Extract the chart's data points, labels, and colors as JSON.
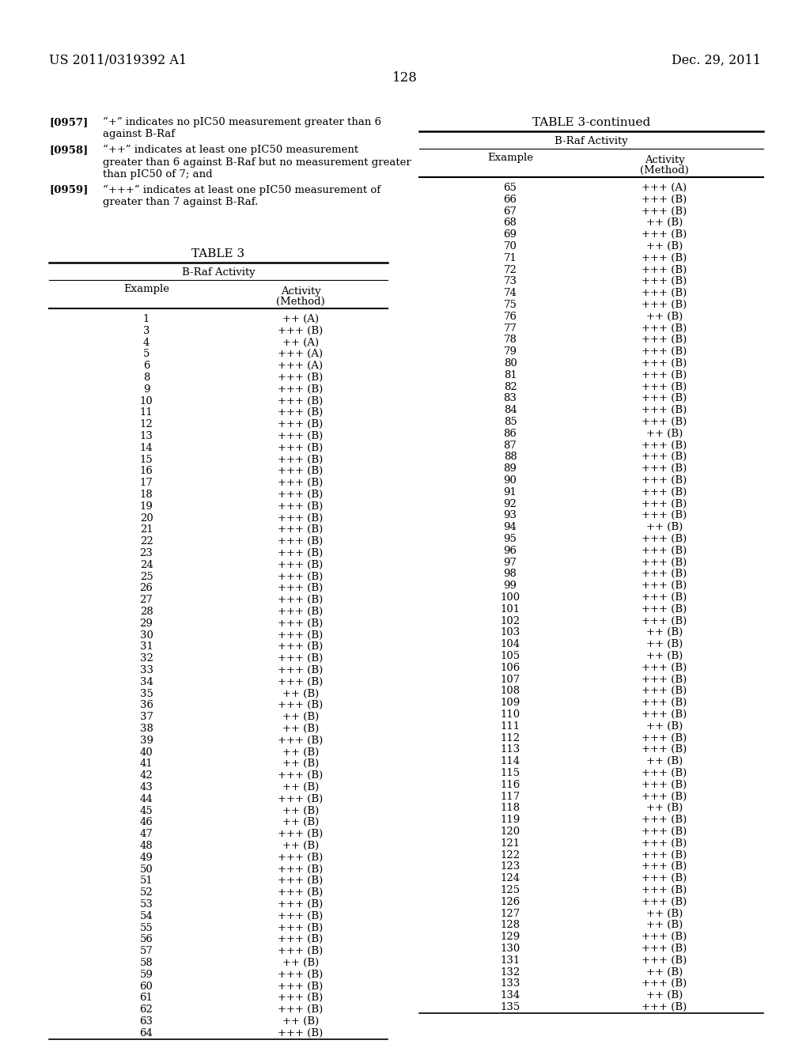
{
  "page_number": "128",
  "patent_number": "US 2011/0319392 A1",
  "patent_date": "Dec. 29, 2011",
  "background_color": "#ffffff",
  "text_color": "#000000",
  "left_table_data": [
    [
      1,
      "++ (A)"
    ],
    [
      3,
      "+++ (B)"
    ],
    [
      4,
      "++ (A)"
    ],
    [
      5,
      "+++ (A)"
    ],
    [
      6,
      "+++ (A)"
    ],
    [
      8,
      "+++ (B)"
    ],
    [
      9,
      "+++ (B)"
    ],
    [
      10,
      "+++ (B)"
    ],
    [
      11,
      "+++ (B)"
    ],
    [
      12,
      "+++ (B)"
    ],
    [
      13,
      "+++ (B)"
    ],
    [
      14,
      "+++ (B)"
    ],
    [
      15,
      "+++ (B)"
    ],
    [
      16,
      "+++ (B)"
    ],
    [
      17,
      "+++ (B)"
    ],
    [
      18,
      "+++ (B)"
    ],
    [
      19,
      "+++ (B)"
    ],
    [
      20,
      "+++ (B)"
    ],
    [
      21,
      "+++ (B)"
    ],
    [
      22,
      "+++ (B)"
    ],
    [
      23,
      "+++ (B)"
    ],
    [
      24,
      "+++ (B)"
    ],
    [
      25,
      "+++ (B)"
    ],
    [
      26,
      "+++ (B)"
    ],
    [
      27,
      "+++ (B)"
    ],
    [
      28,
      "+++ (B)"
    ],
    [
      29,
      "+++ (B)"
    ],
    [
      30,
      "+++ (B)"
    ],
    [
      31,
      "+++ (B)"
    ],
    [
      32,
      "+++ (B)"
    ],
    [
      33,
      "+++ (B)"
    ],
    [
      34,
      "+++ (B)"
    ],
    [
      35,
      "++ (B)"
    ],
    [
      36,
      "+++ (B)"
    ],
    [
      37,
      "++ (B)"
    ],
    [
      38,
      "++ (B)"
    ],
    [
      39,
      "+++ (B)"
    ],
    [
      40,
      "++ (B)"
    ],
    [
      41,
      "++ (B)"
    ],
    [
      42,
      "+++ (B)"
    ],
    [
      43,
      "++ (B)"
    ],
    [
      44,
      "+++ (B)"
    ],
    [
      45,
      "++ (B)"
    ],
    [
      46,
      "++ (B)"
    ],
    [
      47,
      "+++ (B)"
    ],
    [
      48,
      "++ (B)"
    ],
    [
      49,
      "+++ (B)"
    ],
    [
      50,
      "+++ (B)"
    ],
    [
      51,
      "+++ (B)"
    ],
    [
      52,
      "+++ (B)"
    ],
    [
      53,
      "+++ (B)"
    ],
    [
      54,
      "+++ (B)"
    ],
    [
      55,
      "+++ (B)"
    ],
    [
      56,
      "+++ (B)"
    ],
    [
      57,
      "+++ (B)"
    ],
    [
      58,
      "++ (B)"
    ],
    [
      59,
      "+++ (B)"
    ],
    [
      60,
      "+++ (B)"
    ],
    [
      61,
      "+++ (B)"
    ],
    [
      62,
      "+++ (B)"
    ],
    [
      63,
      "++ (B)"
    ],
    [
      64,
      "+++ (B)"
    ]
  ],
  "right_table_data": [
    [
      65,
      "+++ (A)"
    ],
    [
      66,
      "+++ (B)"
    ],
    [
      67,
      "+++ (B)"
    ],
    [
      68,
      "++ (B)"
    ],
    [
      69,
      "+++ (B)"
    ],
    [
      70,
      "++ (B)"
    ],
    [
      71,
      "+++ (B)"
    ],
    [
      72,
      "+++ (B)"
    ],
    [
      73,
      "+++ (B)"
    ],
    [
      74,
      "+++ (B)"
    ],
    [
      75,
      "+++ (B)"
    ],
    [
      76,
      "++ (B)"
    ],
    [
      77,
      "+++ (B)"
    ],
    [
      78,
      "+++ (B)"
    ],
    [
      79,
      "+++ (B)"
    ],
    [
      80,
      "+++ (B)"
    ],
    [
      81,
      "+++ (B)"
    ],
    [
      82,
      "+++ (B)"
    ],
    [
      83,
      "+++ (B)"
    ],
    [
      84,
      "+++ (B)"
    ],
    [
      85,
      "+++ (B)"
    ],
    [
      86,
      "++ (B)"
    ],
    [
      87,
      "+++ (B)"
    ],
    [
      88,
      "+++ (B)"
    ],
    [
      89,
      "+++ (B)"
    ],
    [
      90,
      "+++ (B)"
    ],
    [
      91,
      "+++ (B)"
    ],
    [
      92,
      "+++ (B)"
    ],
    [
      93,
      "+++ (B)"
    ],
    [
      94,
      "++ (B)"
    ],
    [
      95,
      "+++ (B)"
    ],
    [
      96,
      "+++ (B)"
    ],
    [
      97,
      "+++ (B)"
    ],
    [
      98,
      "+++ (B)"
    ],
    [
      99,
      "+++ (B)"
    ],
    [
      100,
      "+++ (B)"
    ],
    [
      101,
      "+++ (B)"
    ],
    [
      102,
      "+++ (B)"
    ],
    [
      103,
      "++ (B)"
    ],
    [
      104,
      "++ (B)"
    ],
    [
      105,
      "++ (B)"
    ],
    [
      106,
      "+++ (B)"
    ],
    [
      107,
      "+++ (B)"
    ],
    [
      108,
      "+++ (B)"
    ],
    [
      109,
      "+++ (B)"
    ],
    [
      110,
      "+++ (B)"
    ],
    [
      111,
      "++ (B)"
    ],
    [
      112,
      "+++ (B)"
    ],
    [
      113,
      "+++ (B)"
    ],
    [
      114,
      "++ (B)"
    ],
    [
      115,
      "+++ (B)"
    ],
    [
      116,
      "+++ (B)"
    ],
    [
      117,
      "+++ (B)"
    ],
    [
      118,
      "++ (B)"
    ],
    [
      119,
      "+++ (B)"
    ],
    [
      120,
      "+++ (B)"
    ],
    [
      121,
      "+++ (B)"
    ],
    [
      122,
      "+++ (B)"
    ],
    [
      123,
      "+++ (B)"
    ],
    [
      124,
      "+++ (B)"
    ],
    [
      125,
      "+++ (B)"
    ],
    [
      126,
      "+++ (B)"
    ],
    [
      127,
      "++ (B)"
    ],
    [
      128,
      "++ (B)"
    ],
    [
      129,
      "+++ (B)"
    ],
    [
      130,
      "+++ (B)"
    ],
    [
      131,
      "+++ (B)"
    ],
    [
      132,
      "++ (B)"
    ],
    [
      133,
      "+++ (B)"
    ],
    [
      134,
      "++ (B)"
    ],
    [
      135,
      "+++ (B)"
    ]
  ]
}
